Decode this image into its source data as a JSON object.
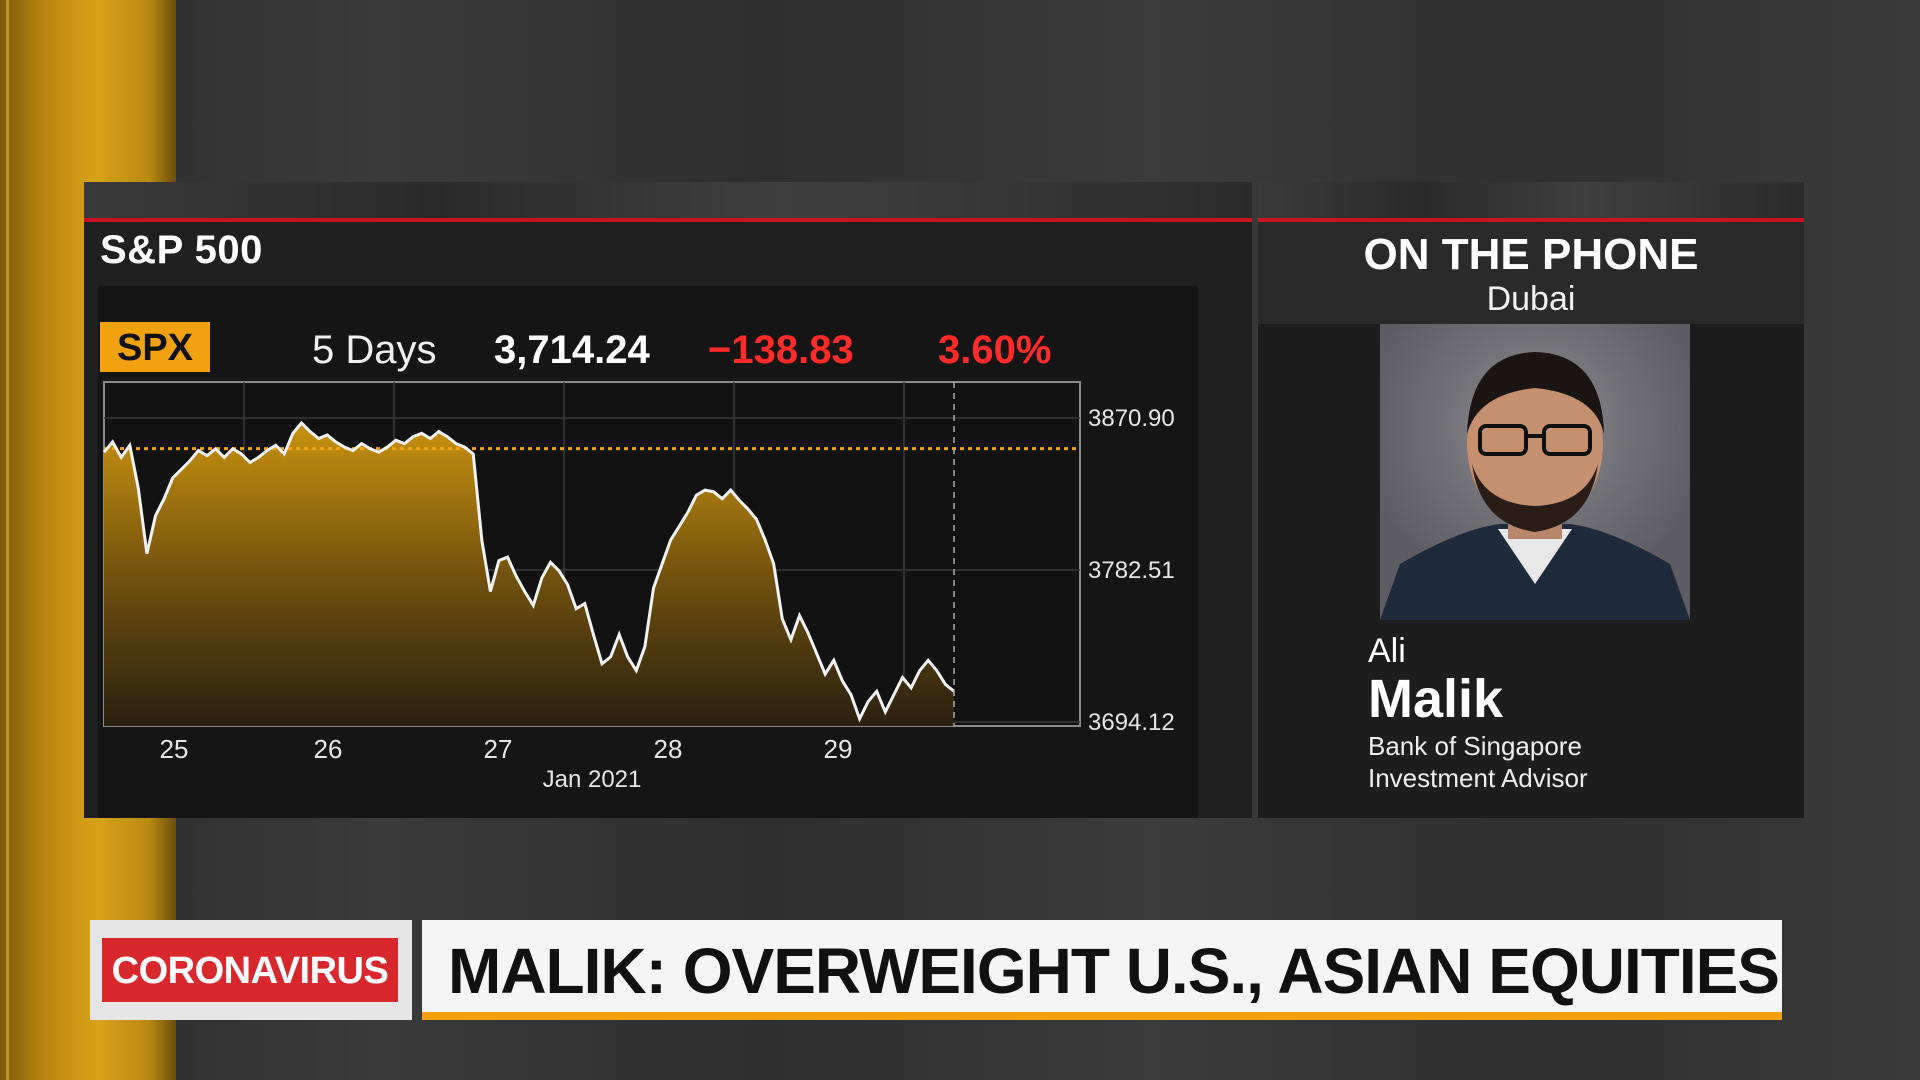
{
  "chart_panel": {
    "title": "S&P 500",
    "ticker": "SPX",
    "period": "5 Days",
    "last_price": "3,714.24",
    "change": "−138.83",
    "change_pct": "3.60%",
    "date_label": "Jan 2021"
  },
  "phone_panel": {
    "title": "ON THE PHONE",
    "location": "Dubai",
    "first_name": "Ali",
    "last_name": "Malik",
    "organization": "Bank of Singapore",
    "role": "Investment Advisor"
  },
  "lower_third": {
    "tag": "CORONAVIRUS",
    "headline": "MALIK: OVERWEIGHT U.S., ASIAN EQUITIES"
  },
  "colors": {
    "accent_gold": "#f2a20f",
    "negative_red": "#ff2a2a",
    "rule_red": "#c8141e"
  },
  "chart_data": {
    "type": "area",
    "title": "S&P 500",
    "x_tick_labels": [
      "25",
      "26",
      "27",
      "28",
      "29"
    ],
    "x_axis_caption": "Jan 2021",
    "y_tick_labels": [
      "3870.90",
      "3782.51",
      "3694.12"
    ],
    "ylim": [
      3694.12,
      3870.9
    ],
    "reference_line": 3853.07,
    "series": [
      {
        "values": [
          3851,
          3857,
          3848,
          3855,
          3830,
          3792,
          3814,
          3824,
          3836,
          3841,
          3846,
          3852,
          3849,
          3853,
          3848,
          3853,
          3850,
          3845,
          3848,
          3852,
          3855,
          3850,
          3862,
          3868,
          3863,
          3859,
          3861,
          3857,
          3854,
          3852,
          3856,
          3853,
          3851,
          3854,
          3858,
          3856,
          3860,
          3862,
          3859,
          3863,
          3860,
          3856,
          3854,
          3850,
          3800,
          3770,
          3788,
          3790,
          3779,
          3770,
          3762,
          3778,
          3787,
          3782,
          3774,
          3760,
          3763,
          3745,
          3728,
          3732,
          3745,
          3732,
          3724,
          3738,
          3772,
          3786,
          3800,
          3808,
          3816,
          3826,
          3829,
          3828,
          3824,
          3829,
          3823,
          3818,
          3812,
          3800,
          3786,
          3754,
          3742,
          3756,
          3746,
          3734,
          3722,
          3730,
          3718,
          3710,
          3696,
          3706,
          3712,
          3700,
          3710,
          3720,
          3714,
          3724,
          3730,
          3724,
          3716,
          3712
        ]
      }
    ]
  }
}
